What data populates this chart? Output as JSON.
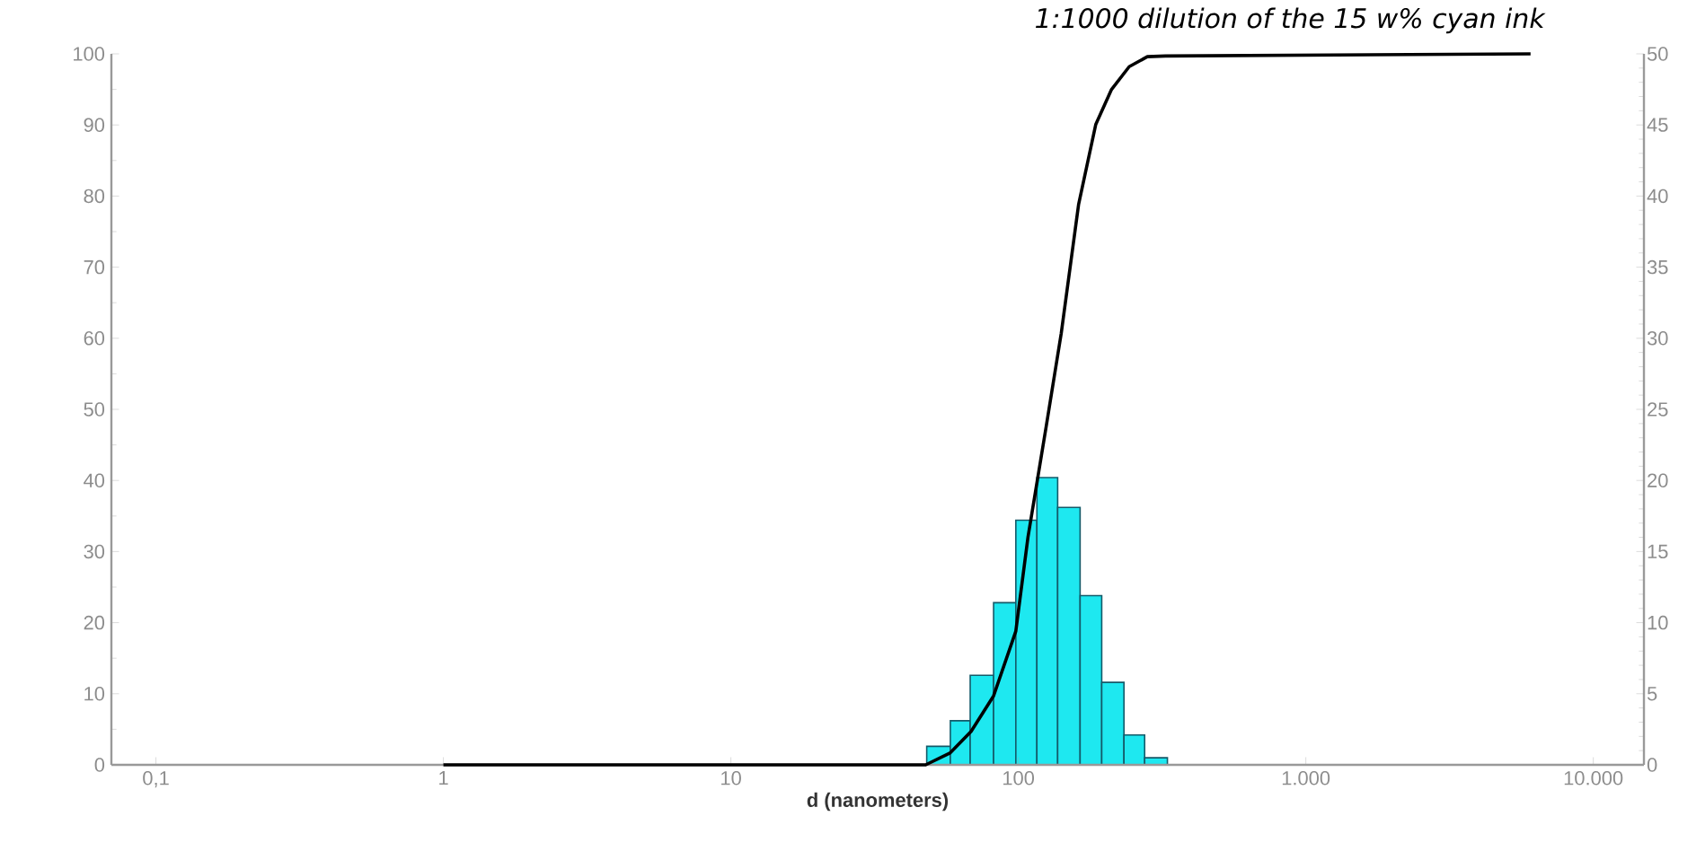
{
  "chart_data": {
    "type": "histogram",
    "title": "1:1000 dilution of the 15 w% cyan ink",
    "xlabel": "d (nanometers)",
    "log": "x",
    "xlim": [
      0.07,
      15000
    ],
    "xticks": [
      {
        "value": 0.1,
        "label": "0,1"
      },
      1,
      10,
      100,
      {
        "value": 1000,
        "label": "1.000"
      },
      {
        "value": 10000,
        "label": "10.000"
      }
    ],
    "ylim": [
      0,
      100
    ],
    "yticks": [
      0,
      10,
      20,
      30,
      40,
      50,
      60,
      70,
      80,
      90,
      100
    ],
    "y2lim": [
      0,
      50
    ],
    "y2ticks": [
      0,
      5,
      10,
      15,
      20,
      25,
      30,
      35,
      40,
      45,
      50
    ],
    "series": [
      {
        "type": "histogram",
        "axis": "y2",
        "color": "#1ee8f0",
        "bins": [
          48,
          58,
          68,
          82,
          98,
          116,
          137,
          164,
          195,
          233,
          275,
          330
        ],
        "values": [
          1.3,
          3.1,
          6.3,
          11.4,
          17.2,
          20.2,
          18.1,
          11.9,
          5.8,
          2.1,
          0.5
        ]
      },
      {
        "type": "line",
        "axis": "y",
        "color": "#000000",
        "x": [
          1,
          47.6,
          58,
          68.5,
          82,
          98,
          108,
          125,
          141,
          162,
          186,
          211,
          243,
          281,
          325,
          6050
        ],
        "values": [
          0,
          0,
          1.7,
          4.7,
          9.7,
          18.8,
          32,
          47.6,
          60.7,
          78.8,
          90.1,
          95,
          98.2,
          99.6,
          99.7,
          100
        ]
      }
    ]
  }
}
